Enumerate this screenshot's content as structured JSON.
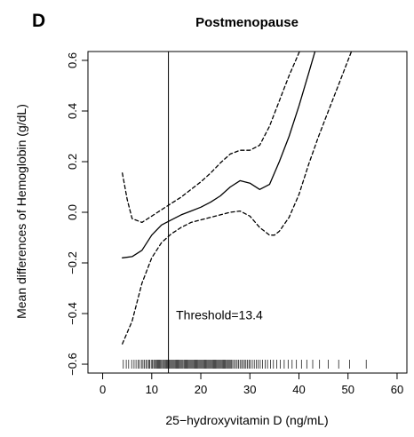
{
  "chart_data": {
    "type": "line",
    "panel_label": "D",
    "title": "Postmenopause",
    "xlabel": "25−hydroxyvitamin D (ng/mL)",
    "ylabel": "Mean differences of Hemoglobin (g/dL)",
    "xlim": [
      -3,
      62
    ],
    "ylim": [
      -0.635,
      0.635
    ],
    "x_ticks": [
      0,
      10,
      20,
      30,
      40,
      50,
      60
    ],
    "x_tick_labels": [
      "0",
      "10",
      "20",
      "30",
      "40",
      "50",
      "60"
    ],
    "y_ticks": [
      -0.6,
      -0.4,
      -0.2,
      0.0,
      0.2,
      0.4,
      0.6
    ],
    "y_tick_labels": [
      "−0.6",
      "−0.4",
      "−0.2",
      "0.0",
      "0.2",
      "0.4",
      "0.6"
    ],
    "grid": false,
    "threshold": {
      "x": 13.4,
      "label": "Threshold=13.4",
      "label_pos": [
        13.5,
        -0.405
      ]
    },
    "series": [
      {
        "role": "estimate",
        "style": "solid",
        "x": [
          4,
          6,
          8,
          10,
          12,
          14,
          16,
          18,
          20,
          22,
          24,
          26,
          28,
          30,
          32,
          34,
          36,
          38,
          40,
          42,
          43.5
        ],
        "y": [
          -0.18,
          -0.175,
          -0.15,
          -0.09,
          -0.05,
          -0.03,
          -0.01,
          0.005,
          0.02,
          0.04,
          0.065,
          0.1,
          0.125,
          0.115,
          0.09,
          0.11,
          0.2,
          0.3,
          0.42,
          0.55,
          0.65
        ]
      },
      {
        "role": "upper_ci",
        "style": "dashed",
        "x": [
          4,
          5,
          6,
          8,
          10,
          12,
          14,
          16,
          18,
          20,
          22,
          24,
          26,
          28,
          30,
          32,
          34,
          36,
          37,
          38,
          39,
          40,
          40.5
        ],
        "y": [
          0.155,
          0.05,
          -0.025,
          -0.04,
          -0.015,
          0.01,
          0.035,
          0.06,
          0.09,
          0.12,
          0.155,
          0.195,
          0.23,
          0.245,
          0.245,
          0.265,
          0.34,
          0.44,
          0.49,
          0.54,
          0.585,
          0.63,
          0.65
        ]
      },
      {
        "role": "lower_ci",
        "style": "dashed",
        "x": [
          4,
          6,
          8,
          10,
          12,
          14,
          16,
          18,
          20,
          22,
          24,
          26,
          28,
          30,
          32,
          34,
          35,
          36,
          38,
          40,
          42,
          44,
          46,
          48,
          50,
          51
        ],
        "y": [
          -0.52,
          -0.43,
          -0.28,
          -0.18,
          -0.12,
          -0.085,
          -0.06,
          -0.04,
          -0.03,
          -0.02,
          -0.01,
          0.0,
          0.005,
          -0.015,
          -0.06,
          -0.09,
          -0.09,
          -0.075,
          -0.02,
          0.07,
          0.19,
          0.3,
          0.4,
          0.5,
          0.6,
          0.65
        ]
      }
    ],
    "rug_x": [
      4.2,
      4.8,
      5.3,
      5.9,
      6.4,
      6.8,
      7.2,
      7.5,
      7.9,
      8.2,
      8.5,
      8.8,
      9.1,
      9.4,
      9.6,
      9.9,
      10.1,
      10.4,
      10.6,
      10.8,
      11.0,
      11.2,
      11.4,
      11.6,
      11.8,
      12.0,
      12.2,
      12.4,
      12.6,
      12.8,
      13.0,
      13.2,
      13.4,
      13.6,
      13.8,
      14.0,
      14.2,
      14.4,
      14.6,
      14.8,
      15.0,
      15.2,
      15.4,
      15.6,
      15.8,
      16.0,
      16.2,
      16.4,
      16.6,
      16.8,
      17.0,
      17.2,
      17.4,
      17.6,
      17.8,
      18.0,
      18.2,
      18.4,
      18.6,
      18.8,
      19.0,
      19.2,
      19.4,
      19.6,
      19.8,
      20.0,
      20.2,
      20.4,
      20.6,
      20.8,
      21.0,
      21.2,
      21.4,
      21.6,
      21.8,
      22.0,
      22.2,
      22.4,
      22.6,
      22.8,
      23.0,
      23.2,
      23.4,
      23.6,
      23.8,
      24.0,
      24.2,
      24.4,
      24.6,
      24.8,
      25.0,
      25.2,
      25.4,
      25.6,
      25.8,
      26.0,
      26.2,
      26.5,
      26.8,
      27.1,
      27.4,
      27.7,
      28.0,
      28.3,
      28.6,
      28.9,
      29.2,
      29.5,
      29.8,
      30.1,
      30.5,
      30.9,
      31.3,
      31.7,
      32.1,
      32.6,
      33.1,
      33.6,
      34.2,
      34.8,
      35.5,
      36.2,
      37.0,
      37.8,
      38.6,
      39.5,
      40.5,
      41.6,
      42.8,
      44.2,
      46.0,
      48.1,
      50.3,
      53.7
    ]
  }
}
